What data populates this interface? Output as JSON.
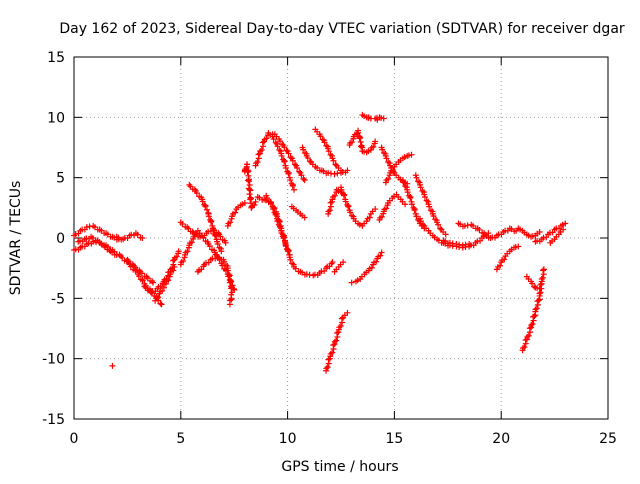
{
  "chart_data": {
    "type": "scatter",
    "title": "Day 162 of 2023, Sidereal Day-to-day VTEC variation (SDTVAR) for receiver dgar",
    "xlabel": "GPS time / hours",
    "ylabel": "SDTVAR / TECUs",
    "xlim": [
      0,
      25
    ],
    "ylim": [
      -15,
      15
    ],
    "xticks": [
      "0",
      "5",
      "10",
      "15",
      "20",
      "25"
    ],
    "yticks": [
      "-15",
      "-10",
      "-5",
      "0",
      "5",
      "10",
      "15"
    ],
    "grid": true,
    "marker": "+",
    "color": "#ff0000",
    "series_segments": [
      [
        [
          0,
          0.2
        ],
        [
          0.3,
          0.6
        ],
        [
          0.6,
          0.9
        ],
        [
          0.9,
          1.0
        ],
        [
          1.2,
          0.7
        ],
        [
          1.5,
          0.4
        ],
        [
          1.8,
          0.1
        ],
        [
          2.1,
          -0.1
        ]
      ],
      [
        [
          0,
          -1.0
        ],
        [
          0.3,
          -0.8
        ],
        [
          0.6,
          -0.5
        ],
        [
          0.9,
          -0.3
        ],
        [
          1.2,
          -0.4
        ],
        [
          1.5,
          -0.6
        ],
        [
          1.8,
          -1.0
        ],
        [
          2.2,
          -1.5
        ],
        [
          2.6,
          -2.2
        ],
        [
          3.0,
          -3.0
        ],
        [
          3.3,
          -3.8
        ],
        [
          3.6,
          -4.4
        ],
        [
          3.9,
          -5.0
        ],
        [
          4.1,
          -5.5
        ]
      ],
      [
        [
          0.2,
          -0.3
        ],
        [
          0.5,
          -0.1
        ],
        [
          0.8,
          0.1
        ],
        [
          1.1,
          -0.2
        ],
        [
          1.4,
          -0.6
        ],
        [
          1.7,
          -1.1
        ],
        [
          2.0,
          -1.4
        ]
      ],
      [
        [
          2.0,
          0.1
        ],
        [
          2.3,
          -0.1
        ],
        [
          2.6,
          0.2
        ],
        [
          2.9,
          0.4
        ],
        [
          3.2,
          0.0
        ]
      ],
      [
        [
          2.5,
          -1.8
        ],
        [
          2.8,
          -2.3
        ],
        [
          3.1,
          -2.8
        ],
        [
          3.4,
          -3.2
        ],
        [
          3.7,
          -3.7
        ]
      ],
      [
        [
          3.3,
          -4.0
        ],
        [
          3.6,
          -4.5
        ],
        [
          3.9,
          -4.2
        ],
        [
          4.2,
          -3.6
        ],
        [
          4.5,
          -2.8
        ],
        [
          4.7,
          -1.8
        ],
        [
          4.9,
          -1.1
        ]
      ],
      [
        [
          3.8,
          -5.2
        ],
        [
          4.0,
          -4.6
        ],
        [
          4.3,
          -3.8
        ],
        [
          4.5,
          -3.0
        ],
        [
          4.7,
          -2.4
        ]
      ],
      [
        [
          5.0,
          -2.2
        ],
        [
          5.2,
          -1.4
        ],
        [
          5.4,
          -0.6
        ],
        [
          5.6,
          0.1
        ],
        [
          5.8,
          0.6
        ],
        [
          6.0,
          0.2
        ],
        [
          6.3,
          -0.5
        ],
        [
          6.6,
          -1.2
        ],
        [
          6.9,
          -2.1
        ],
        [
          7.2,
          -3.0
        ],
        [
          7.5,
          -4.3
        ]
      ],
      [
        [
          5.0,
          1.3
        ],
        [
          5.3,
          0.9
        ],
        [
          5.6,
          0.4
        ],
        [
          5.9,
          0.1
        ],
        [
          6.2,
          0.4
        ],
        [
          6.5,
          0.8
        ],
        [
          6.8,
          0.3
        ],
        [
          7.1,
          -0.4
        ]
      ],
      [
        [
          5.4,
          4.4
        ],
        [
          5.7,
          3.9
        ],
        [
          6.0,
          3.2
        ],
        [
          6.3,
          2.0
        ],
        [
          6.5,
          0.8
        ],
        [
          6.7,
          -0.3
        ],
        [
          6.9,
          -1.1
        ]
      ],
      [
        [
          5.8,
          -2.8
        ],
        [
          6.1,
          -2.2
        ],
        [
          6.4,
          -1.8
        ],
        [
          6.7,
          -1.5
        ],
        [
          7.0,
          -1.8
        ],
        [
          7.2,
          -2.5
        ],
        [
          7.3,
          -3.5
        ],
        [
          7.4,
          -4.5
        ],
        [
          7.3,
          -5.5
        ]
      ],
      [
        [
          7.2,
          1.0
        ],
        [
          7.4,
          1.8
        ],
        [
          7.6,
          2.4
        ],
        [
          7.8,
          2.7
        ],
        [
          8.0,
          2.9
        ]
      ],
      [
        [
          8.0,
          5.5
        ],
        [
          8.1,
          6.1
        ],
        [
          8.3,
          2.5
        ],
        [
          8.5,
          3.0
        ]
      ],
      [
        [
          8.5,
          6.0
        ],
        [
          8.7,
          7.0
        ],
        [
          8.9,
          8.0
        ],
        [
          9.1,
          8.7
        ],
        [
          9.3,
          8.4
        ],
        [
          9.5,
          7.8
        ],
        [
          9.7,
          7.0
        ],
        [
          9.9,
          6.0
        ],
        [
          10.1,
          5.0
        ],
        [
          10.3,
          4.0
        ]
      ],
      [
        [
          8.6,
          3.4
        ],
        [
          8.9,
          3.2
        ],
        [
          9.2,
          3.0
        ],
        [
          9.5,
          2.0
        ],
        [
          9.7,
          0.8
        ],
        [
          9.9,
          -0.4
        ],
        [
          10.1,
          -1.6
        ],
        [
          10.3,
          -2.4
        ],
        [
          10.6,
          -2.8
        ],
        [
          10.9,
          -3.0
        ],
        [
          11.2,
          -3.1
        ],
        [
          11.5,
          -2.9
        ],
        [
          11.8,
          -2.5
        ],
        [
          12.1,
          -2.0
        ]
      ],
      [
        [
          9.0,
          3.5
        ],
        [
          9.3,
          2.6
        ],
        [
          9.5,
          1.6
        ],
        [
          9.7,
          0.6
        ],
        [
          9.9,
          -0.5
        ],
        [
          10.1,
          -1.4
        ]
      ],
      [
        [
          9.4,
          8.6
        ],
        [
          9.6,
          8.2
        ],
        [
          9.8,
          7.7
        ],
        [
          10.0,
          7.2
        ],
        [
          10.2,
          6.6
        ],
        [
          10.4,
          6.0
        ],
        [
          10.6,
          5.4
        ],
        [
          10.8,
          4.8
        ]
      ],
      [
        [
          10.2,
          2.6
        ],
        [
          10.4,
          2.3
        ],
        [
          10.6,
          2.0
        ],
        [
          10.8,
          1.7
        ]
      ],
      [
        [
          10.7,
          7.5
        ],
        [
          10.9,
          6.8
        ],
        [
          11.1,
          6.3
        ],
        [
          11.3,
          5.9
        ],
        [
          11.6,
          5.6
        ],
        [
          11.9,
          5.4
        ],
        [
          12.2,
          5.3
        ],
        [
          12.5,
          5.4
        ],
        [
          12.8,
          5.6
        ]
      ],
      [
        [
          11.3,
          9.0
        ],
        [
          11.5,
          8.6
        ],
        [
          11.7,
          8.1
        ],
        [
          11.9,
          7.4
        ],
        [
          12.1,
          6.6
        ],
        [
          12.3,
          6.0
        ],
        [
          12.5,
          5.6
        ]
      ],
      [
        [
          11.8,
          -11.0
        ],
        [
          12.0,
          -9.8
        ],
        [
          12.2,
          -8.8
        ],
        [
          12.4,
          -7.6
        ],
        [
          12.6,
          -6.6
        ],
        [
          12.8,
          -6.2
        ]
      ],
      [
        [
          11.9,
          2.0
        ],
        [
          12.1,
          3.2
        ],
        [
          12.3,
          4.0
        ],
        [
          12.5,
          3.8
        ]
      ],
      [
        [
          12.2,
          -2.8
        ],
        [
          12.4,
          -2.4
        ],
        [
          12.6,
          -2.0
        ]
      ],
      [
        [
          12.5,
          4.2
        ],
        [
          12.7,
          3.2
        ],
        [
          12.9,
          2.3
        ],
        [
          13.1,
          1.6
        ],
        [
          13.3,
          1.2
        ],
        [
          13.5,
          1.0
        ],
        [
          13.7,
          1.4
        ],
        [
          13.9,
          2.0
        ],
        [
          14.1,
          2.4
        ]
      ],
      [
        [
          12.9,
          7.7
        ],
        [
          13.1,
          8.4
        ],
        [
          13.3,
          8.9
        ],
        [
          13.5,
          7.2
        ],
        [
          13.7,
          7.1
        ],
        [
          13.9,
          7.3
        ],
        [
          14.1,
          8.0
        ]
      ],
      [
        [
          13.2,
          -3.6
        ],
        [
          13.4,
          -3.4
        ],
        [
          13.6,
          -3.0
        ],
        [
          13.8,
          -2.7
        ],
        [
          14.0,
          -2.2
        ],
        [
          14.2,
          -1.7
        ],
        [
          14.4,
          -1.2
        ]
      ],
      [
        [
          13.5,
          10.2
        ],
        [
          13.7,
          10.0
        ],
        [
          13.9,
          9.9
        ],
        [
          14.1,
          9.9
        ],
        [
          14.3,
          10.0
        ],
        [
          14.5,
          9.9
        ]
      ],
      [
        [
          14.3,
          1.5
        ],
        [
          14.5,
          2.2
        ],
        [
          14.7,
          2.9
        ],
        [
          14.9,
          3.3
        ],
        [
          15.1,
          3.6
        ],
        [
          15.3,
          3.2
        ],
        [
          15.5,
          2.8
        ]
      ],
      [
        [
          14.4,
          7.5
        ],
        [
          14.6,
          6.8
        ],
        [
          14.8,
          6.0
        ],
        [
          15.0,
          5.4
        ],
        [
          15.2,
          5.0
        ],
        [
          15.4,
          4.7
        ],
        [
          15.6,
          4.5
        ]
      ],
      [
        [
          14.6,
          4.6
        ],
        [
          14.8,
          5.4
        ],
        [
          15.0,
          5.9
        ],
        [
          15.2,
          6.3
        ],
        [
          15.4,
          6.6
        ],
        [
          15.6,
          6.8
        ],
        [
          15.8,
          6.9
        ]
      ],
      [
        [
          15.4,
          4.8
        ],
        [
          15.6,
          4.0
        ],
        [
          15.8,
          3.0
        ],
        [
          16.0,
          2.0
        ],
        [
          16.2,
          1.2
        ],
        [
          16.4,
          0.8
        ]
      ],
      [
        [
          16.0,
          5.2
        ],
        [
          16.2,
          4.4
        ],
        [
          16.4,
          3.6
        ],
        [
          16.6,
          2.8
        ],
        [
          16.8,
          2.0
        ],
        [
          17.0,
          1.3
        ],
        [
          17.2,
          0.7
        ],
        [
          17.4,
          0.3
        ]
      ],
      [
        [
          16.2,
          1.6
        ],
        [
          16.4,
          1.0
        ],
        [
          16.6,
          0.6
        ],
        [
          16.8,
          0.2
        ],
        [
          17.0,
          -0.1
        ],
        [
          17.3,
          -0.4
        ],
        [
          17.6,
          -0.6
        ],
        [
          17.9,
          -0.7
        ],
        [
          18.2,
          -0.8
        ],
        [
          18.5,
          -0.7
        ],
        [
          18.8,
          -0.4
        ],
        [
          19.1,
          0.0
        ],
        [
          19.4,
          0.4
        ]
      ],
      [
        [
          17.3,
          -0.2
        ],
        [
          17.6,
          -0.4
        ],
        [
          17.9,
          -0.5
        ],
        [
          18.2,
          -0.6
        ],
        [
          18.5,
          -0.5
        ]
      ],
      [
        [
          18.0,
          1.2
        ],
        [
          18.3,
          1.0
        ],
        [
          18.6,
          1.1
        ],
        [
          18.9,
          0.8
        ],
        [
          19.2,
          0.4
        ],
        [
          19.5,
          0.0
        ],
        [
          19.8,
          0.2
        ],
        [
          20.1,
          0.5
        ],
        [
          20.4,
          0.8
        ],
        [
          20.7,
          0.6
        ]
      ],
      [
        [
          19.8,
          -2.6
        ],
        [
          20.0,
          -2.0
        ],
        [
          20.2,
          -1.5
        ],
        [
          20.4,
          -1.1
        ],
        [
          20.6,
          -0.8
        ],
        [
          20.8,
          -0.7
        ]
      ],
      [
        [
          20.8,
          0.8
        ],
        [
          21.0,
          0.6
        ],
        [
          21.2,
          0.3
        ],
        [
          21.4,
          0.1
        ],
        [
          21.6,
          0.2
        ],
        [
          21.8,
          0.5
        ]
      ],
      [
        [
          21.0,
          -9.3
        ],
        [
          21.2,
          -8.4
        ],
        [
          21.4,
          -7.4
        ],
        [
          21.6,
          -6.1
        ],
        [
          21.8,
          -4.8
        ],
        [
          21.9,
          -3.6
        ],
        [
          22.0,
          -2.6
        ]
      ],
      [
        [
          21.2,
          -3.2
        ],
        [
          21.4,
          -3.6
        ],
        [
          21.6,
          -4.1
        ],
        [
          21.8,
          -4.2
        ]
      ],
      [
        [
          21.6,
          -0.3
        ],
        [
          21.9,
          -0.1
        ],
        [
          22.2,
          0.3
        ],
        [
          22.5,
          0.7
        ],
        [
          22.8,
          1.0
        ],
        [
          23.0,
          1.2
        ]
      ],
      [
        [
          22.3,
          -0.4
        ],
        [
          22.5,
          -0.1
        ],
        [
          22.7,
          0.3
        ],
        [
          22.9,
          0.7
        ]
      ]
    ],
    "points": [
      [
        1.8,
        -10.6
      ],
      [
        8.0,
        5.6
      ],
      [
        8.1,
        6.1
      ],
      [
        13.8,
        10.0
      ],
      [
        9.3,
        8.6
      ],
      [
        13.0,
        -3.7
      ],
      [
        14.2,
        9.8
      ]
    ]
  }
}
